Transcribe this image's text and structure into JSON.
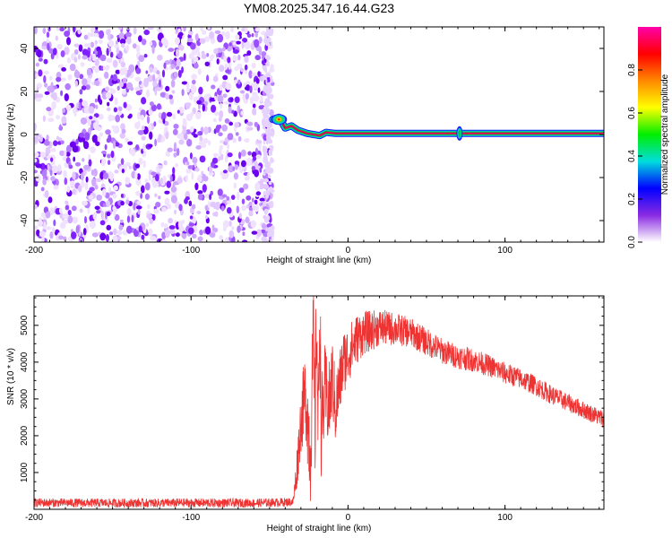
{
  "figure_title": "YM08.2025.347.16.44.G23",
  "colors": {
    "snr_line": "#ee3333",
    "axis": "#000000",
    "background": "#ffffff"
  },
  "chart_data": [
    {
      "type": "heatmap",
      "title": "YM08.2025.347.16.44.G23",
      "xlabel": "Height of straight line (km)",
      "ylabel": "Frequency (Hz)",
      "xlim": [
        -200,
        163
      ],
      "ylim": [
        -50,
        50
      ],
      "xticks": [
        -200,
        -100,
        0,
        100
      ],
      "xtick_labels": [
        "-200",
        "-100",
        "0",
        "100"
      ],
      "yticks": [
        -40,
        -20,
        0,
        20,
        40
      ],
      "ytick_labels": [
        "-40",
        "-20",
        "0",
        "20",
        "40"
      ],
      "noise_region_x": [
        -200,
        -48
      ],
      "carrier_line": {
        "freq_hz": 0.5,
        "x_start": -48,
        "x_end": 163,
        "wobble_points": [
          [
            -48,
            7
          ],
          [
            -44,
            8
          ],
          [
            -40,
            3
          ],
          [
            -36,
            4
          ],
          [
            -32,
            2
          ],
          [
            -26,
            0.5
          ],
          [
            -18,
            -0.5
          ],
          [
            -14,
            1
          ],
          [
            -8,
            0.5
          ],
          [
            0,
            0.5
          ],
          [
            163,
            0.5
          ]
        ],
        "blob_x": 71
      },
      "colorbar": {
        "label": "Normalized spectral amplitude",
        "range": [
          0,
          1
        ],
        "ticks": [
          0.0,
          0.2,
          0.4,
          0.6,
          0.8
        ],
        "tick_labels": [
          "0.0",
          "0.2",
          "0.4",
          "0.6",
          "0.8"
        ],
        "stops": [
          "#ffffff",
          "#8a2be2",
          "#0000ff",
          "#00dddd",
          "#00ee00",
          "#ffff00",
          "#ff8800",
          "#ff0000",
          "#ff00aa"
        ]
      }
    },
    {
      "type": "line",
      "xlabel": "Height of straight line (km)",
      "ylabel": "SNR (10 * v/v)",
      "xlim": [
        -200,
        163
      ],
      "ylim": [
        0,
        5800
      ],
      "xticks": [
        -200,
        -100,
        0,
        100
      ],
      "xtick_labels": [
        "-200",
        "-100",
        "0",
        "100"
      ],
      "yticks": [
        1000,
        2000,
        3000,
        4000,
        5000
      ],
      "ytick_labels": [
        "1000",
        "2000",
        "3000",
        "4000",
        "5000"
      ],
      "series": [
        {
          "name": "SNR",
          "x": [
            -200,
            -150,
            -100,
            -60,
            -35,
            -33,
            -30,
            -27,
            -24,
            -22,
            -21,
            -20,
            -19,
            -18,
            -17,
            -15,
            -12,
            -10,
            -8,
            -5,
            -3,
            0,
            5,
            10,
            15,
            20,
            30,
            40,
            50,
            60,
            70,
            80,
            90,
            100,
            110,
            120,
            130,
            140,
            150,
            163
          ],
          "values": [
            180,
            170,
            175,
            170,
            200,
            900,
            2400,
            3200,
            1500,
            4600,
            2200,
            5500,
            1800,
            5700,
            2000,
            3200,
            2800,
            3600,
            2700,
            3500,
            4000,
            4200,
            4600,
            4800,
            4850,
            4950,
            4900,
            4800,
            4550,
            4300,
            4150,
            4050,
            3900,
            3700,
            3550,
            3350,
            3100,
            2900,
            2700,
            2450
          ],
          "noise_amplitude": [
            120,
            120,
            120,
            120,
            120,
            500,
            900,
            1200,
            1500,
            1600,
            1600,
            1600,
            1600,
            1600,
            1500,
            1300,
            1200,
            1100,
            1000,
            900,
            900,
            800,
            700,
            600,
            550,
            500,
            450,
            400,
            380,
            350,
            330,
            320,
            300,
            300,
            280,
            270,
            260,
            250,
            240,
            240
          ]
        }
      ]
    }
  ]
}
